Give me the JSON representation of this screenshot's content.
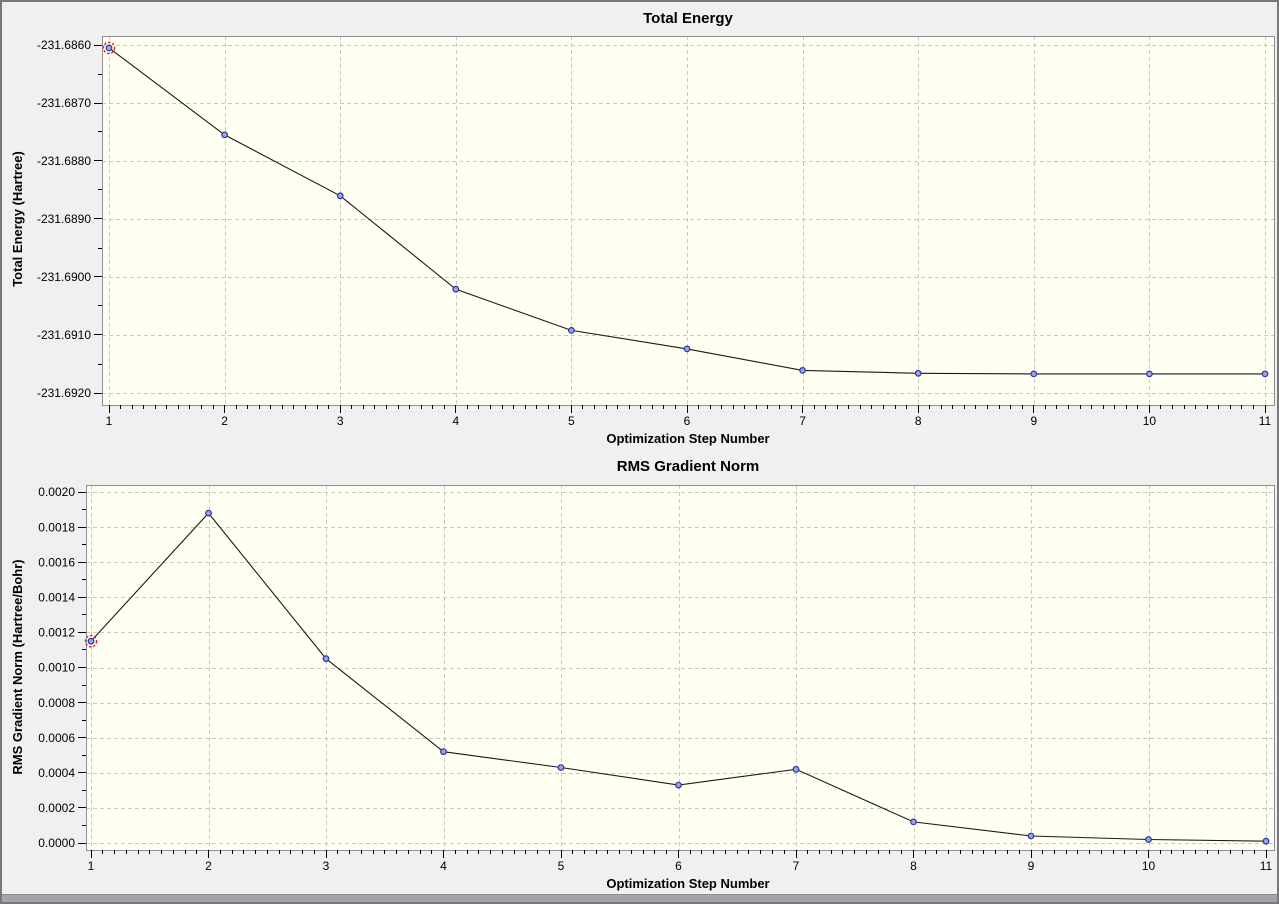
{
  "window": {
    "background_color": "#f0f0f0",
    "border_color": "#78787c",
    "bottom_strip_color": "#a5a5a5"
  },
  "style": {
    "plot_background": "#fffff2",
    "plot_frame_color": "#8e8e96",
    "grid_color": "#c8c8c8",
    "series_line_color": "#1a1a1a",
    "marker_fill": "#9aa4e0",
    "marker_stroke": "#2a35a8",
    "selected_ring_color": "#dd2222",
    "tick_label_color": "#000000"
  },
  "chart_data": [
    {
      "type": "line",
      "title": "Total Energy",
      "xlabel": "Optimization Step Number",
      "ylabel": "Total Energy (Hartree)",
      "x": [
        1,
        2,
        3,
        4,
        5,
        6,
        7,
        8,
        9,
        10,
        11
      ],
      "y": [
        -231.68605,
        -231.68755,
        -231.6886,
        -231.69021,
        -231.69092,
        -231.69124,
        -231.69161,
        -231.69166,
        -231.69167,
        -231.69167,
        -231.69167
      ],
      "xlim": [
        1,
        11
      ],
      "ylim": [
        -231.692,
        -231.686
      ],
      "x_tick_labels": [
        "1",
        "2",
        "3",
        "4",
        "5",
        "6",
        "7",
        "8",
        "9",
        "10",
        "11"
      ],
      "y_tick_labels": [
        "-231.6860",
        "-231.6870",
        "-231.6880",
        "-231.6890",
        "-231.6900",
        "-231.6910",
        "-231.6920"
      ],
      "x_minor_per_major": 10,
      "y_minor_per_major": 2,
      "grid": true,
      "legend": null,
      "selected_point_index": 0
    },
    {
      "type": "line",
      "title": "RMS Gradient Norm",
      "xlabel": "Optimization Step Number",
      "ylabel": "RMS Gradient Norm (Hartree/Bohr)",
      "x": [
        1,
        2,
        3,
        4,
        5,
        6,
        7,
        8,
        9,
        10,
        11
      ],
      "y": [
        0.00115,
        0.00188,
        0.00105,
        0.00052,
        0.00043,
        0.00033,
        0.00042,
        0.00012,
        4e-05,
        2e-05,
        1e-05
      ],
      "xlim": [
        1,
        11
      ],
      "ylim": [
        0.0,
        0.002
      ],
      "x_tick_labels": [
        "1",
        "2",
        "3",
        "4",
        "5",
        "6",
        "7",
        "8",
        "9",
        "10",
        "11"
      ],
      "y_tick_labels": [
        "0.0020",
        "0.0018",
        "0.0016",
        "0.0014",
        "0.0012",
        "0.0010",
        "0.0008",
        "0.0006",
        "0.0004",
        "0.0002",
        "0.0000"
      ],
      "x_minor_per_major": 10,
      "y_minor_per_major": 2,
      "grid": true,
      "legend": null,
      "selected_point_index": 0
    }
  ]
}
